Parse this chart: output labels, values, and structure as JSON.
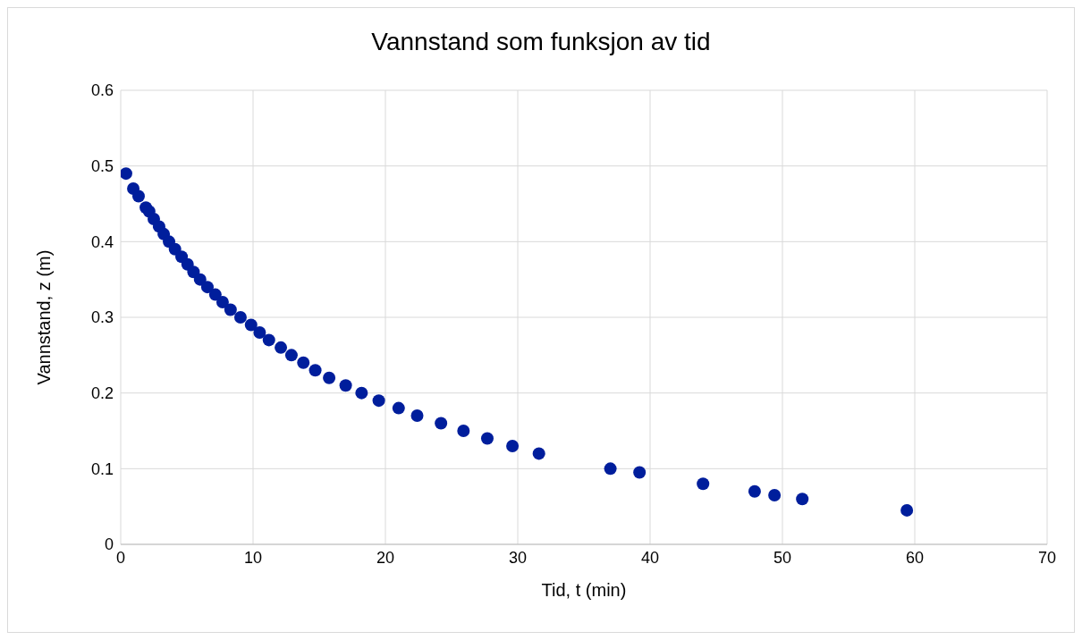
{
  "chart_data": {
    "type": "scatter",
    "title": "Vannstand som funksjon av tid",
    "xlabel": "Tid, t (min)",
    "ylabel": "Vannstand, z (m)",
    "x": [
      0.4,
      0.95,
      1.35,
      1.9,
      2.15,
      2.5,
      2.9,
      3.25,
      3.65,
      4.1,
      4.6,
      5.05,
      5.5,
      6.0,
      6.55,
      7.15,
      7.7,
      8.3,
      9.05,
      9.85,
      10.5,
      11.2,
      12.1,
      12.9,
      13.8,
      14.7,
      15.75,
      17.0,
      18.2,
      19.5,
      21.0,
      22.4,
      24.2,
      25.9,
      27.7,
      29.6,
      31.6,
      37.0,
      39.2,
      44.0,
      47.9,
      49.4,
      51.5,
      59.4
    ],
    "series": [
      {
        "color": "#001e9c",
        "values": [
          0.49,
          0.47,
          0.46,
          0.445,
          0.44,
          0.43,
          0.42,
          0.41,
          0.4,
          0.39,
          0.38,
          0.37,
          0.36,
          0.35,
          0.34,
          0.33,
          0.32,
          0.31,
          0.3,
          0.29,
          0.28,
          0.27,
          0.26,
          0.25,
          0.24,
          0.23,
          0.22,
          0.21,
          0.2,
          0.19,
          0.18,
          0.17,
          0.16,
          0.15,
          0.14,
          0.13,
          0.12,
          0.1,
          0.095,
          0.08,
          0.07,
          0.065,
          0.06,
          0.045
        ]
      }
    ],
    "xlim": [
      0,
      70
    ],
    "xticks": [
      0,
      10,
      20,
      30,
      40,
      50,
      60,
      70
    ],
    "ylim": [
      0,
      0.6
    ],
    "yticks": [
      0,
      0.1,
      0.2,
      0.3,
      0.4,
      0.5,
      0.6
    ],
    "grid": true,
    "marker": "circle"
  }
}
